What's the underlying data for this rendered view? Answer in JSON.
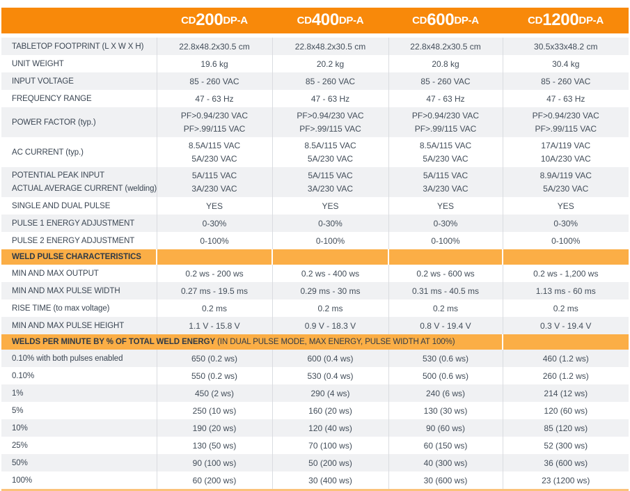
{
  "colors": {
    "header_orange": "#F8890A",
    "section_orange": "#FBAE46",
    "bottom_line_orange": "#FBC27A",
    "alt_row_gray": "#F0F1F3",
    "divider_gray": "#DADCE0",
    "text_dark": "#424D59",
    "header_text": "#FFFFFF"
  },
  "products": [
    {
      "prefix": "CD",
      "model": "200",
      "suffix": "DP-A"
    },
    {
      "prefix": "CD",
      "model": "400",
      "suffix": "DP-A"
    },
    {
      "prefix": "CD",
      "model": "600",
      "suffix": "DP-A"
    },
    {
      "prefix": "CD",
      "model": "1200",
      "suffix": "DP-A"
    }
  ],
  "table": {
    "rows": [
      {
        "kind": "spec",
        "label": "TABLETOP FOOTPRINT (L X W X H)",
        "values": [
          "22.8x48.2x30.5 cm",
          "22.8x48.2x30.5 cm",
          "22.8x48.2x30.5 cm",
          "30.5x33x48.2 cm"
        ]
      },
      {
        "kind": "spec",
        "label": "UNIT WEIGHT",
        "values": [
          "19.6 kg",
          "20.2 kg",
          "20.8 kg",
          "30.4 kg"
        ]
      },
      {
        "kind": "spec",
        "label": "INPUT VOLTAGE",
        "values": [
          "85 - 260 VAC",
          "85 - 260 VAC",
          "85 - 260 VAC",
          "85 - 260 VAC"
        ]
      },
      {
        "kind": "spec",
        "label": "FREQUENCY RANGE",
        "values": [
          "47 - 63 Hz",
          "47 - 63 Hz",
          "47 - 63 Hz",
          "47 - 63 Hz"
        ]
      },
      {
        "kind": "spec",
        "label": "POWER FACTOR (typ.)",
        "values": [
          [
            "PF>0.94/230 VAC",
            "PF>.99/115 VAC"
          ],
          [
            "PF>0.94/230 VAC",
            "PF>.99/115 VAC"
          ],
          [
            "PF>0.94/230 VAC",
            "PF>.99/115 VAC"
          ],
          [
            "PF>0.94/230 VAC",
            "PF>.99/115 VAC"
          ]
        ]
      },
      {
        "kind": "spec",
        "label": "AC CURRENT (typ.)",
        "values": [
          [
            "8.5A/115 VAC",
            "5A/230 VAC"
          ],
          [
            "8.5A/115 VAC",
            "5A/230 VAC"
          ],
          [
            "8.5A/115 VAC",
            "5A/230 VAC"
          ],
          [
            "17A/119 VAC",
            "10A/230 VAC"
          ]
        ]
      },
      {
        "kind": "spec",
        "label_lines": [
          "POTENTIAL PEAK INPUT",
          "ACTUAL AVERAGE CURRENT (welding)"
        ],
        "values": [
          [
            "5A/115 VAC",
            "3A/230 VAC"
          ],
          [
            "5A/115 VAC",
            "3A/230 VAC"
          ],
          [
            "5A/115 VAC",
            "3A/230 VAC"
          ],
          [
            "8.9A/119 VAC",
            "5A/230 VAC"
          ]
        ]
      },
      {
        "kind": "spec",
        "label": "SINGLE AND DUAL PULSE",
        "values": [
          "YES",
          "YES",
          "YES",
          "YES"
        ]
      },
      {
        "kind": "spec",
        "label": "PULSE 1 ENERGY ADJUSTMENT",
        "values": [
          "0-30%",
          "0-30%",
          "0-30%",
          "0-30%"
        ]
      },
      {
        "kind": "spec",
        "label": "PULSE 2 ENERGY ADJUSTMENT",
        "values": [
          "0-100%",
          "0-100%",
          "0-100%",
          "0-100%"
        ]
      },
      {
        "kind": "section",
        "label": "WELD PULSE CHARACTERISTICS",
        "span": false
      },
      {
        "kind": "spec",
        "label": "MIN AND MAX OUTPUT",
        "values": [
          "0.2 ws - 200 ws",
          "0.2 ws - 400 ws",
          "0.2 ws - 600 ws",
          "0.2 ws - 1,200 ws"
        ]
      },
      {
        "kind": "spec",
        "label": "MIN AND MAX PULSE WIDTH",
        "values": [
          "0.27 ms - 19.5 ms",
          "0.29 ms - 30 ms",
          "0.31 ms - 40.5 ms",
          "1.13 ms - 60 ms"
        ]
      },
      {
        "kind": "spec",
        "label": "RISE TIME (to max voltage)",
        "values": [
          "0.2 ms",
          "0.2 ms",
          "0.2 ms",
          "0.2 ms"
        ]
      },
      {
        "kind": "spec",
        "label": "MIN AND MAX PULSE HEIGHT",
        "values": [
          "1.1 V - 15.8 V",
          "0.9 V - 18.3 V",
          "0.8 V - 19.4 V",
          "0.3 V - 19.4 V"
        ]
      },
      {
        "kind": "section",
        "label_bold": "WELDS PER MINUTE BY % OF TOTAL WELD ENERGY",
        "label_normal": " (IN DUAL PULSE MODE, MAX ENERGY, PULSE WIDTH AT 100%)",
        "span": true
      },
      {
        "kind": "spec",
        "label": "0.10% with both pulses enabled",
        "values": [
          "650 (0.2 ws)",
          "600 (0.4 ws)",
          "530 (0.6 ws)",
          "460 (1.2 ws)"
        ]
      },
      {
        "kind": "spec",
        "label": "0.10%",
        "values": [
          "550 (0.2 ws)",
          "530 (0.4 ws)",
          "500 (0.6 ws)",
          "260 (1.2 ws)"
        ]
      },
      {
        "kind": "spec",
        "label": "1%",
        "values": [
          "450 (2 ws)",
          "290 (4 ws)",
          "240 (6 ws)",
          "214 (12 ws)"
        ]
      },
      {
        "kind": "spec",
        "label": "5%",
        "values": [
          "250 (10 ws)",
          "160 (20 ws)",
          "130 (30 ws)",
          "120 (60 ws)"
        ]
      },
      {
        "kind": "spec",
        "label": "10%",
        "values": [
          "190 (20 ws)",
          "120 (40 ws)",
          "90 (60 ws)",
          "85 (120 ws)"
        ]
      },
      {
        "kind": "spec",
        "label": "25%",
        "values": [
          "130 (50 ws)",
          "70 (100 ws)",
          "60 (150 ws)",
          "52 (300 ws)"
        ]
      },
      {
        "kind": "spec",
        "label": "50%",
        "values": [
          "90 (100 ws)",
          "50 (200 ws)",
          "40 (300 ws)",
          "36 (600 ws)"
        ]
      },
      {
        "kind": "spec",
        "label": "100%",
        "values": [
          "60 (200 ws)",
          "30 (400 ws)",
          "30 (600 ws)",
          "23 (1200 ws)"
        ]
      }
    ]
  }
}
